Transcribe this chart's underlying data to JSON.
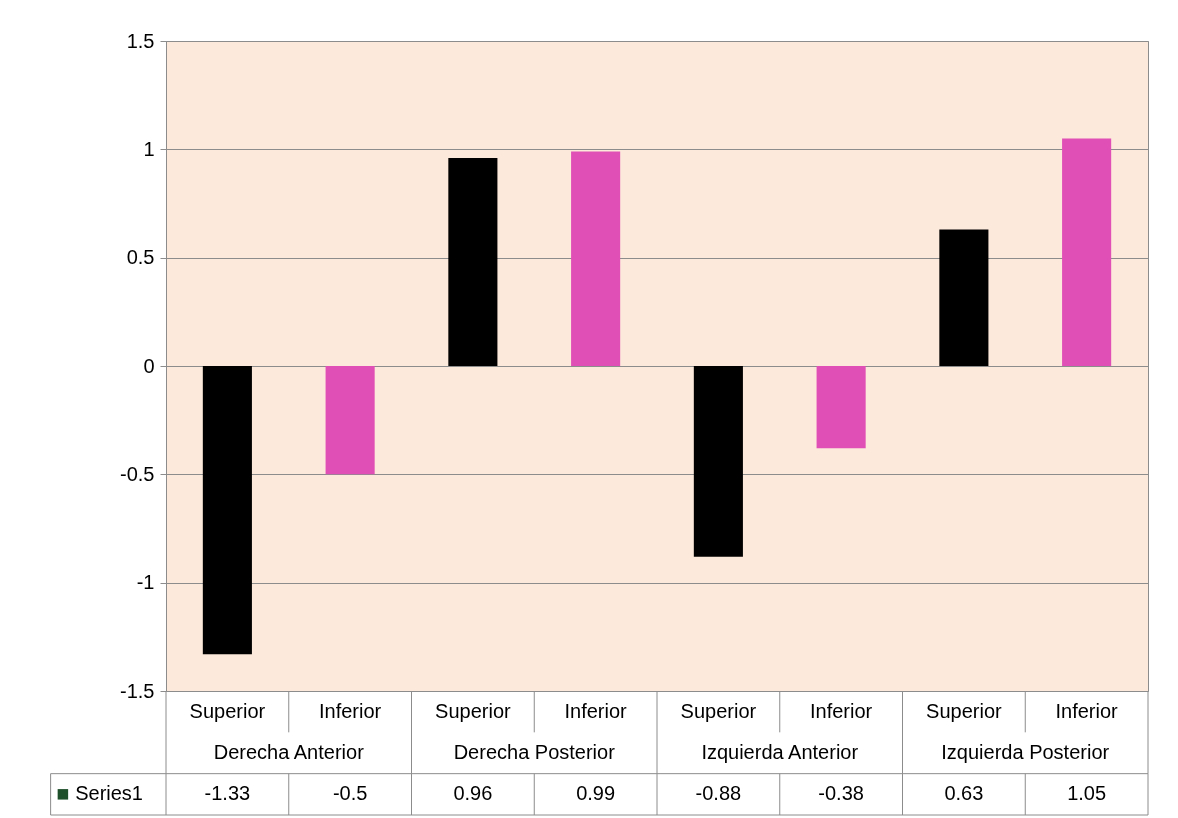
{
  "chart_data": {
    "type": "bar",
    "categories": [
      "Superior",
      "Inferior",
      "Superior",
      "Inferior",
      "Superior",
      "Inferior",
      "Superior",
      "Inferior"
    ],
    "annotations": [
      "Derecha Anterior",
      "Derecha Posterior",
      "Izquierda Anterior",
      "Izquierda Posterior"
    ],
    "series": [
      {
        "name": "Series1",
        "values": [
          -1.33,
          -0.5,
          0.96,
          0.99,
          -0.88,
          -0.38,
          0.63,
          1.05
        ]
      }
    ],
    "colors": [
      "#000000",
      "#e04fb6",
      "#000000",
      "#e04fb6",
      "#000000",
      "#e04fb6",
      "#000000",
      "#e04fb6"
    ],
    "ylim": [
      -1.5,
      1.5
    ],
    "yticks": [
      -1.5,
      -1,
      -0.5,
      0,
      0.5,
      1,
      1.5
    ],
    "grid": true,
    "data_labels": true
  }
}
